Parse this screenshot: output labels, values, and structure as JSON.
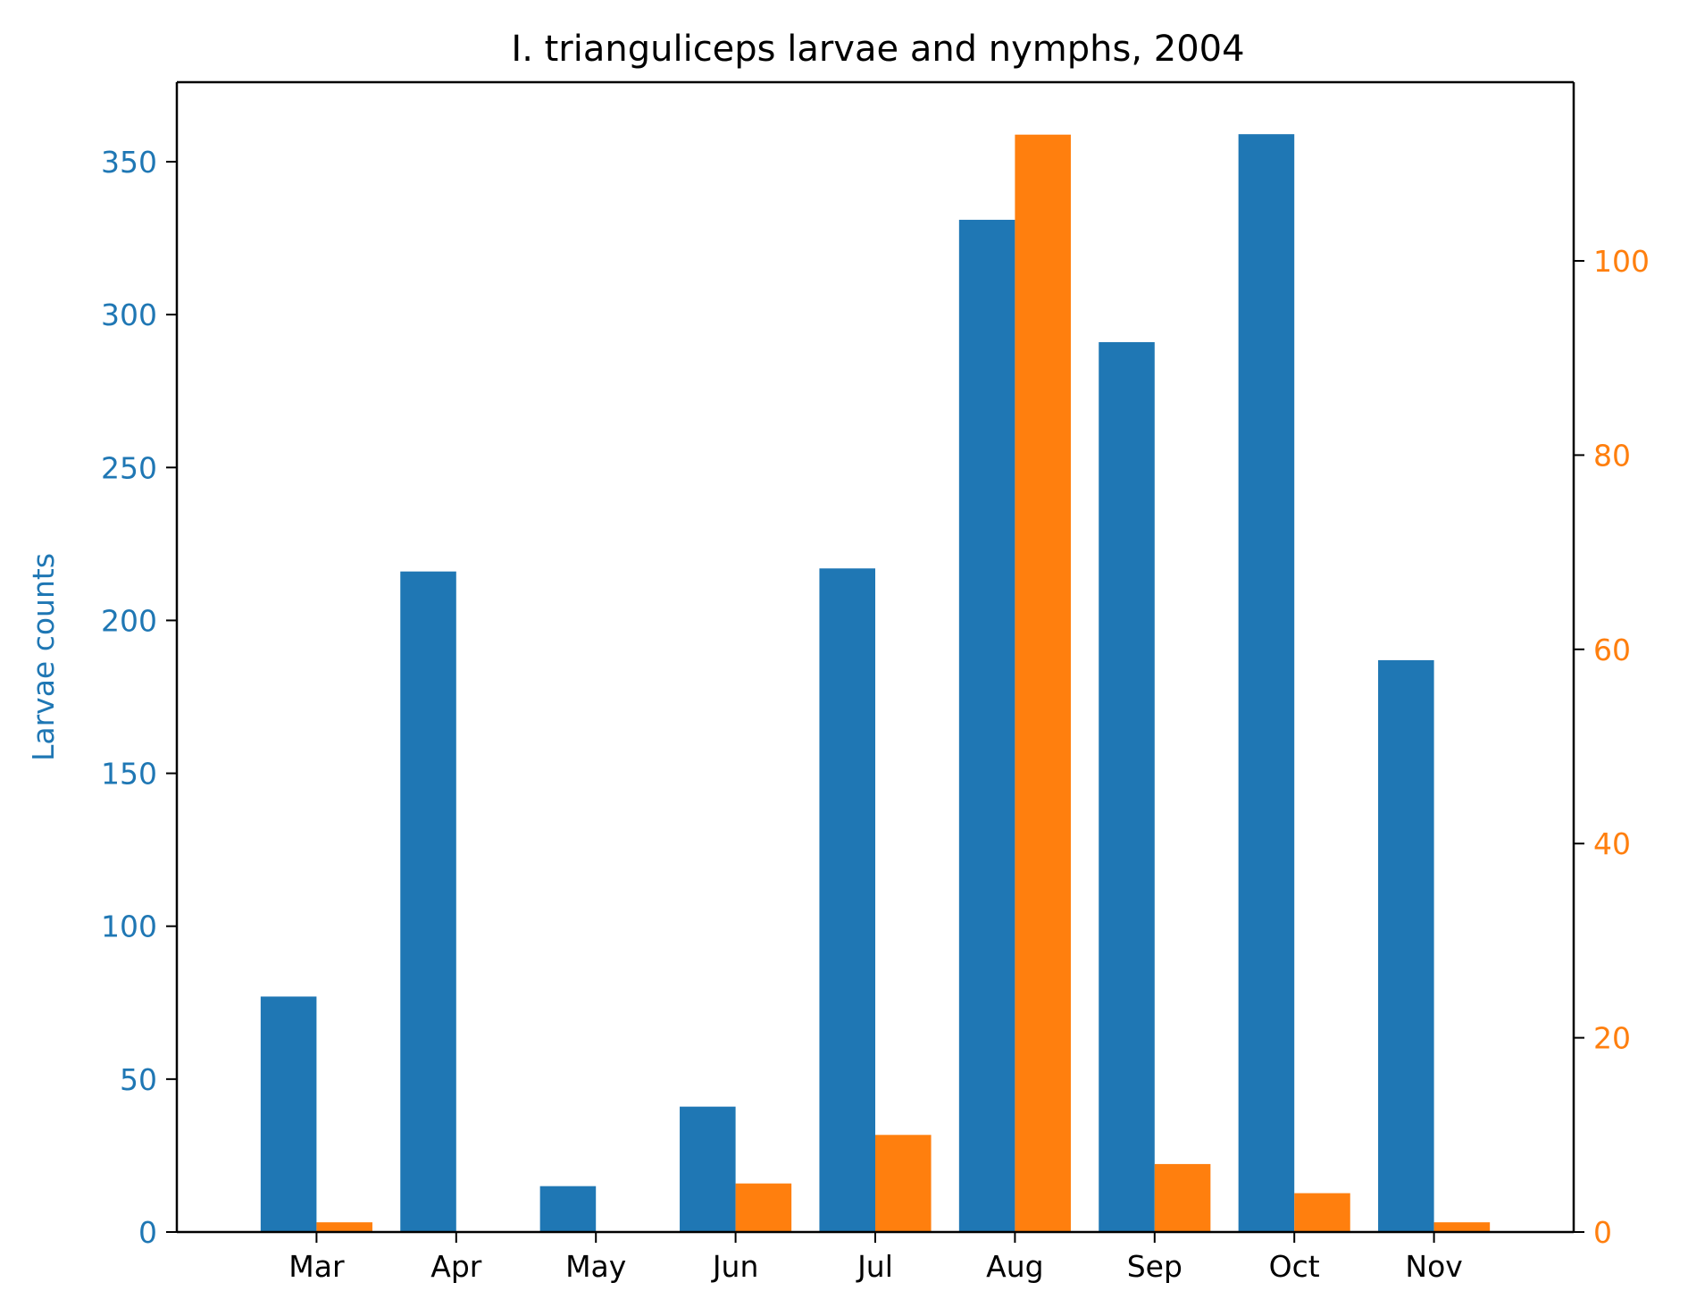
{
  "chart_data": {
    "type": "bar",
    "title": "I. trianguliceps larvae and nymphs, 2004",
    "categories": [
      "Mar",
      "Apr",
      "May",
      "Jun",
      "Jul",
      "Aug",
      "Sep",
      "Oct",
      "Nov"
    ],
    "series": [
      {
        "name": "Larvae counts",
        "axis": "left",
        "color": "#1f77b4",
        "values": [
          77,
          216,
          15,
          41,
          217,
          331,
          291,
          359,
          187
        ]
      },
      {
        "axis": "right",
        "color": "#ff7f0e",
        "values": [
          1,
          0,
          0,
          5,
          10,
          113,
          7,
          4,
          1
        ]
      }
    ],
    "y_left": {
      "label": "Larvae counts",
      "lim": [
        0,
        376
      ],
      "ticks": [
        0,
        50,
        100,
        150,
        200,
        250,
        300,
        350
      ],
      "color": "#1f77b4"
    },
    "y_right": {
      "label": "",
      "lim": [
        0,
        118.4
      ],
      "ticks": [
        0,
        20,
        40,
        60,
        80,
        100
      ],
      "color": "#ff7f0e"
    },
    "grid": false,
    "legend": "none"
  }
}
